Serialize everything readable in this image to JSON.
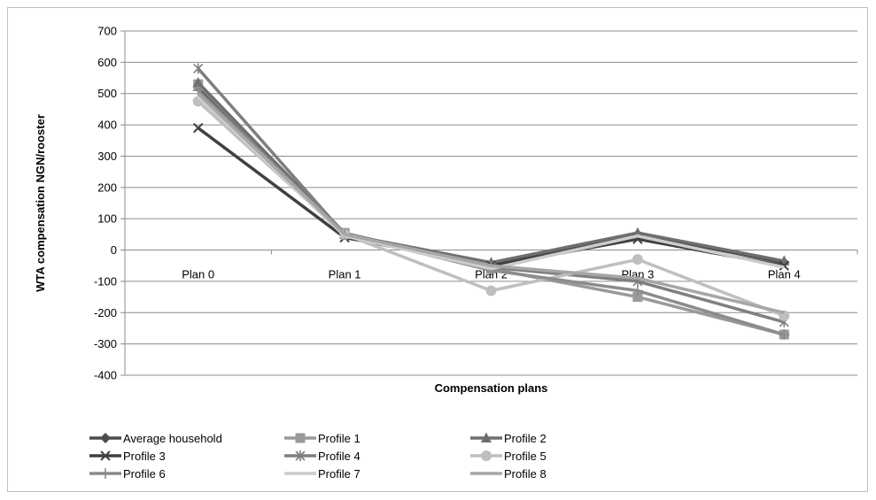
{
  "chart_data": {
    "type": "line",
    "title": "",
    "xlabel": "Compensation plans",
    "ylabel": "WTA compensation NGN/rooster",
    "ylim": [
      -400,
      700
    ],
    "yticks": [
      700,
      600,
      500,
      400,
      300,
      200,
      100,
      0,
      -100,
      -200,
      -300,
      -400
    ],
    "grid": true,
    "legend_position": "bottom",
    "categories": [
      "Plan 0",
      "Plan 1",
      "Plan 2",
      "Plan 3",
      "Plan 4"
    ],
    "series": [
      {
        "name": "Average household",
        "marker": "diamond",
        "color": "#4d4d4d",
        "values": [
          520,
          50,
          -45,
          50,
          -40
        ]
      },
      {
        "name": "Profile 1",
        "marker": "square",
        "color": "#999999",
        "values": [
          530,
          55,
          -60,
          -150,
          -270
        ]
      },
      {
        "name": "Profile 2",
        "marker": "triangle",
        "color": "#6f6f6f",
        "values": [
          535,
          50,
          -40,
          55,
          -35
        ]
      },
      {
        "name": "Profile 3",
        "marker": "x",
        "color": "#404040",
        "values": [
          390,
          40,
          -50,
          35,
          -50
        ]
      },
      {
        "name": "Profile 4",
        "marker": "star",
        "color": "#7f7f7f",
        "values": [
          580,
          50,
          -55,
          -100,
          -230
        ]
      },
      {
        "name": "Profile 5",
        "marker": "circle",
        "color": "#bfbfbf",
        "values": [
          475,
          50,
          -130,
          -30,
          -210
        ]
      },
      {
        "name": "Profile 6",
        "marker": "plus",
        "color": "#8c8c8c",
        "values": [
          510,
          50,
          -65,
          -130,
          -270
        ]
      },
      {
        "name": "Profile 7",
        "marker": "none",
        "color": "#cccccc",
        "values": [
          490,
          45,
          -60,
          45,
          -55
        ]
      },
      {
        "name": "Profile 8",
        "marker": "none",
        "color": "#a6a6a6",
        "values": [
          500,
          50,
          -50,
          -90,
          -200
        ]
      }
    ]
  }
}
